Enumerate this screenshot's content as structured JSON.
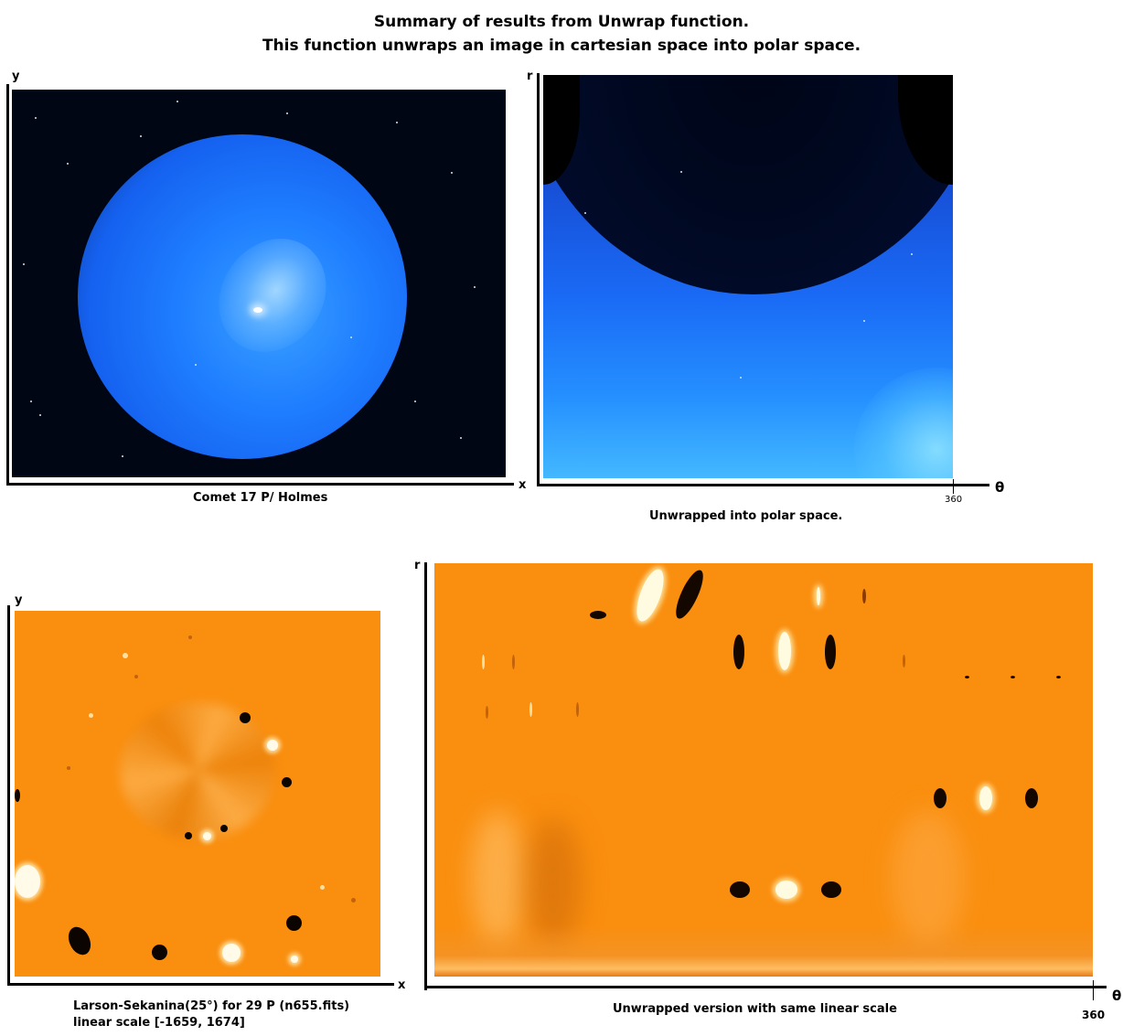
{
  "header": {
    "line1": "Summary of results from Unwrap function.",
    "line2": "This function unwraps an image in cartesian space into polar space."
  },
  "panels": {
    "comet": {
      "y_label": "y",
      "x_label": "x",
      "caption": "Comet 17 P/ Holmes"
    },
    "comet_unwrapped": {
      "r_label": "r",
      "theta_label": "θ",
      "theta_tick": "360",
      "caption": "Unwrapped into polar space."
    },
    "larson_sekanina": {
      "y_label": "y",
      "x_label": "x",
      "caption_line1": "Larson-Sekanina(25°) for 29 P (n655.fits)",
      "caption_line2": "linear scale [-1659, 1674]"
    },
    "ls_unwrapped": {
      "r_label": "r",
      "theta_label": "θ",
      "theta_tick": "360",
      "caption": "Unwrapped version with same linear scale"
    }
  },
  "colors": {
    "comet_blue": "#1f7fff",
    "filter_orange": "#fa8e0e",
    "background": "#ffffff"
  }
}
